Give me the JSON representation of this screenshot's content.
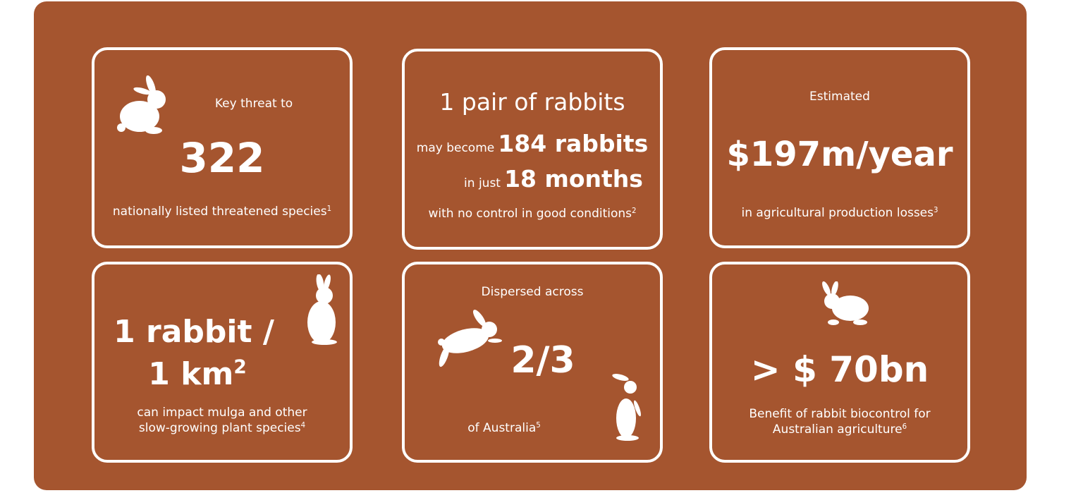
{
  "background_color": "#A5552F",
  "cards": [
    {
      "intro": "Key threat to",
      "value": "322",
      "caption": "nationally listed threatened species",
      "ref": "1",
      "icon": "sitting-rabbit-icon"
    },
    {
      "headline": "1 pair of rabbits",
      "line1_prefix": "may become",
      "line1_value": "184 rabbits",
      "line2_prefix": "in just",
      "line2_value": "18 months",
      "caption": "with no control in good conditions",
      "ref": "2"
    },
    {
      "intro": "Estimated",
      "value": "$197m/year",
      "caption": "in agricultural production losses",
      "ref": "3"
    },
    {
      "value_line1": "1 rabbit /",
      "value_line2": "1 km",
      "value_sup": "2",
      "caption_line1": "can impact mulga and other",
      "caption_line2": "slow-growing plant species",
      "ref": "4",
      "icon": "standing-rabbit-icon"
    },
    {
      "intro": "Dispersed across",
      "value": "2/3",
      "caption": "of Australia",
      "ref": "5",
      "icons": [
        "jumping-rabbit-icon",
        "standing-rabbit-icon"
      ]
    },
    {
      "value": "> $ 70bn",
      "caption_line1": "Benefit of rabbit biocontrol for",
      "caption_line2": "Australian agriculture",
      "ref": "6",
      "icon": "sitting-rabbit-icon"
    }
  ]
}
